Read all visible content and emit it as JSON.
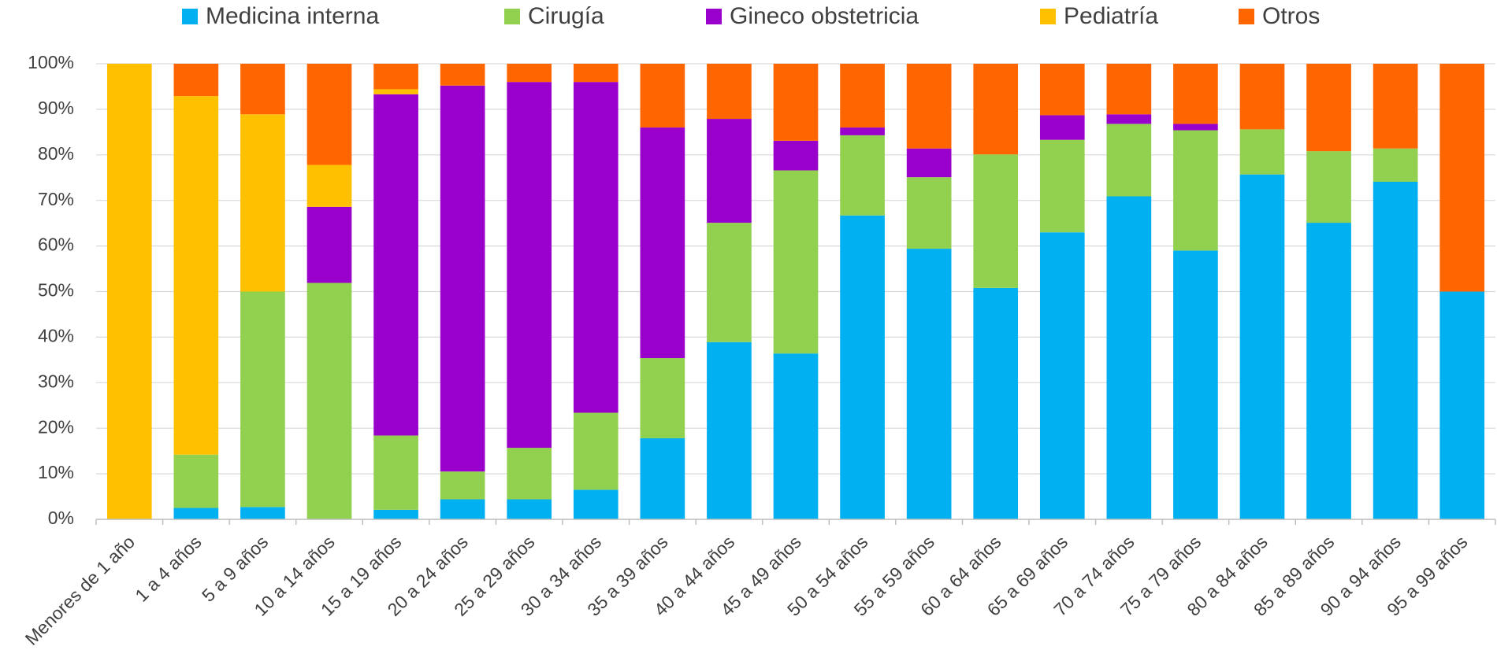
{
  "chart_data": {
    "type": "stacked_bar",
    "categories": [
      "Menores de 1 año",
      "1 a 4 años",
      "5 a 9 años",
      "10 a 14 años",
      "15 a 19 años",
      "20 a 24 años",
      "25 a 29 años",
      "30 a 34 años",
      "35 a 39 años",
      "40 a 44 años",
      "45 a 49 años",
      "50 a 54 años",
      "55 a 59 años",
      "60 a 64 años",
      "65 a 69 años",
      "70 a 74 años",
      "75 a 79 años",
      "80 a 84 años",
      "85 a 89 años",
      "90 a 94 años",
      "95 a 99 años"
    ],
    "series": [
      {
        "name": "Medicina interna",
        "color": "#00b0f0",
        "values": [
          0,
          2.5,
          2.7,
          0,
          2.1,
          4.4,
          4.4,
          6.5,
          17.8,
          38.9,
          36.4,
          66.7,
          59.4,
          50.8,
          63.0,
          70.9,
          59.0,
          75.7,
          65.1,
          74.1,
          50
        ]
      },
      {
        "name": "Cirugía",
        "color": "#92d050",
        "values": [
          0,
          11.7,
          47.3,
          51.9,
          16.3,
          6.1,
          11.3,
          16.9,
          17.6,
          26.2,
          40.2,
          17.6,
          15.7,
          29.3,
          20.3,
          15.9,
          26.4,
          9.9,
          15.7,
          7.3,
          0
        ]
      },
      {
        "name": "Gineco obstetricia",
        "color": "#9900cc",
        "values": [
          0,
          0,
          0,
          16.7,
          74.9,
          84.7,
          80.3,
          72.6,
          50.6,
          22.8,
          6.5,
          1.7,
          6.3,
          0,
          5.4,
          2.1,
          1.4,
          0,
          0,
          0,
          0
        ]
      },
      {
        "name": "Pediatría",
        "color": "#ffc000",
        "values": [
          100,
          78.7,
          38.9,
          9.2,
          1.1,
          0,
          0,
          0,
          0,
          0,
          0,
          0,
          0,
          0,
          0,
          0,
          0,
          0,
          0,
          0,
          0
        ]
      },
      {
        "name": "Otros",
        "color": "#ff6600",
        "values": [
          0,
          7.1,
          11.1,
          22.2,
          5.6,
          4.8,
          4.0,
          4.0,
          14.0,
          12.1,
          16.9,
          14.0,
          18.6,
          19.9,
          11.3,
          11.1,
          13.2,
          14.4,
          19.2,
          18.6,
          50
        ]
      }
    ],
    "ylim": [
      0,
      100
    ],
    "yticks": [
      {
        "value": 0,
        "label": "0%"
      },
      {
        "value": 10,
        "label": "10%"
      },
      {
        "value": 20,
        "label": "20%"
      },
      {
        "value": 30,
        "label": "30%"
      },
      {
        "value": 40,
        "label": "40%"
      },
      {
        "value": 50,
        "label": "50%"
      },
      {
        "value": 60,
        "label": "60%"
      },
      {
        "value": 70,
        "label": "70%"
      },
      {
        "value": 80,
        "label": "80%"
      },
      {
        "value": 90,
        "label": "90%"
      },
      {
        "value": 100,
        "label": "100%"
      }
    ],
    "grid": true,
    "legend": "top"
  }
}
